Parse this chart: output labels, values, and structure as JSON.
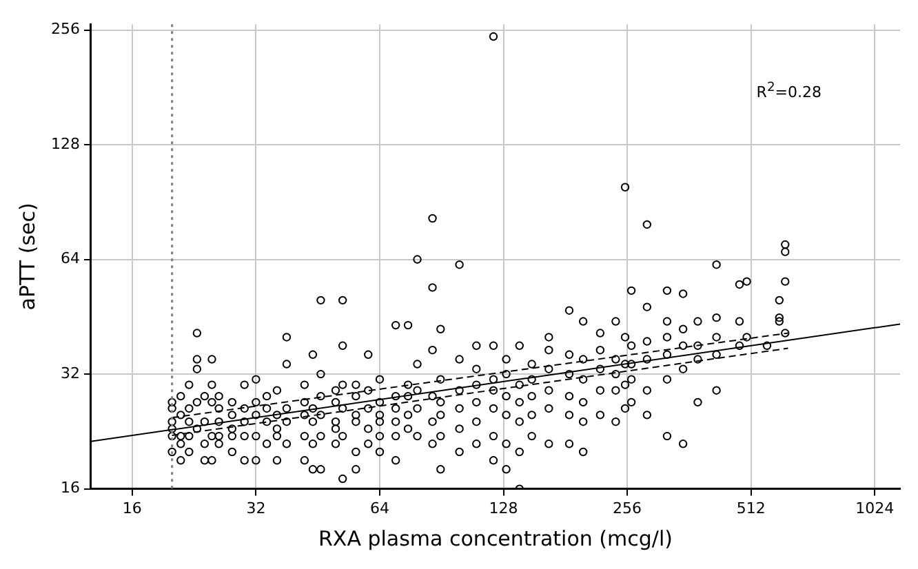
{
  "chart_data": {
    "type": "scatter",
    "xlabel": "RXA plasma concentration (mcg/l)",
    "ylabel": "aPTT (sec)",
    "log": "xy",
    "grid": true,
    "legend": false,
    "xlim": [
      12.7,
      1180
    ],
    "xticks": [
      16,
      32,
      64,
      128,
      256,
      512,
      1024
    ],
    "ylim": [
      16,
      265
    ],
    "yticks": [
      16,
      32,
      64,
      128,
      256
    ],
    "annotations": [
      "R$^{2}$=0.28"
    ],
    "ref_lines": [
      {
        "axis": "x",
        "value": 20,
        "color": "#808080",
        "line_style": "dotted"
      }
    ],
    "series": [
      {
        "marker": "circle",
        "color": "#000000",
        "x": [
          20,
          20,
          20,
          20,
          20,
          20,
          21,
          21,
          21,
          21,
          21,
          22,
          22,
          22,
          22,
          22,
          23,
          23,
          23,
          23,
          23,
          24,
          24,
          24,
          24,
          25,
          25,
          25,
          25,
          25,
          26,
          26,
          26,
          26,
          26,
          28,
          28,
          28,
          28,
          28,
          30,
          30,
          30,
          30,
          30,
          32,
          32,
          32,
          32,
          32,
          34,
          34,
          34,
          34,
          36,
          36,
          36,
          36,
          36,
          38,
          38,
          38,
          38,
          38,
          42,
          42,
          42,
          42,
          42,
          44,
          44,
          44,
          44,
          44,
          46,
          46,
          46,
          46,
          46,
          46,
          50,
          50,
          50,
          50,
          50,
          52,
          52,
          52,
          52,
          52,
          52,
          56,
          56,
          56,
          56,
          56,
          56,
          60,
          60,
          60,
          60,
          60,
          64,
          64,
          64,
          64,
          64,
          64,
          70,
          70,
          70,
          70,
          70,
          70,
          75,
          75,
          75,
          75,
          75,
          79,
          79,
          79,
          79,
          79,
          86,
          86,
          86,
          86,
          86,
          86,
          90,
          90,
          90,
          90,
          90,
          90,
          100,
          100,
          100,
          100,
          100,
          100,
          110,
          110,
          110,
          110,
          110,
          110,
          121,
          121,
          121,
          121,
          121,
          121,
          121,
          130,
          130,
          130,
          130,
          130,
          130,
          140,
          140,
          140,
          140,
          140,
          140,
          150,
          150,
          150,
          150,
          150,
          165,
          165,
          165,
          165,
          165,
          165,
          185,
          185,
          185,
          185,
          185,
          185,
          200,
          200,
          200,
          200,
          200,
          200,
          220,
          220,
          220,
          220,
          220,
          240,
          240,
          240,
          240,
          240,
          253,
          253,
          253,
          253,
          253,
          262,
          262,
          262,
          262,
          262,
          286,
          286,
          286,
          286,
          286,
          286,
          320,
          320,
          320,
          320,
          320,
          320,
          350,
          350,
          350,
          350,
          350,
          380,
          380,
          380,
          380,
          422,
          422,
          422,
          422,
          422,
          480,
          480,
          480,
          500,
          500,
          560,
          600,
          600,
          600,
          620,
          620,
          620,
          620
        ],
        "values": [
          22,
          24,
          26,
          27,
          20,
          23,
          25,
          19,
          22,
          28,
          21,
          24,
          26,
          30,
          20,
          22,
          41,
          33,
          35,
          27,
          23,
          19,
          24,
          28,
          21,
          27,
          22,
          35,
          19,
          30,
          24,
          26,
          21,
          28,
          22,
          23,
          25,
          20,
          27,
          22,
          30,
          22,
          19,
          26,
          24,
          31,
          25,
          22,
          27,
          19,
          24,
          28,
          21,
          26,
          25,
          19,
          29,
          23,
          22,
          40,
          26,
          24,
          21,
          34,
          27,
          22,
          25,
          30,
          19,
          36,
          24,
          26,
          21,
          18,
          50,
          28,
          25,
          22,
          18,
          32,
          24,
          27,
          23,
          29,
          21,
          50,
          38,
          26,
          22,
          17,
          30,
          30,
          24,
          28,
          20,
          18,
          25,
          36,
          26,
          23,
          29,
          21,
          27,
          24,
          22,
          31,
          25,
          20,
          43,
          28,
          26,
          24,
          22,
          19,
          43,
          30,
          25,
          23,
          28,
          64,
          29,
          26,
          22,
          34,
          82,
          54,
          37,
          24,
          21,
          28,
          42,
          31,
          27,
          22,
          18,
          25,
          62,
          35,
          29,
          26,
          23,
          20,
          38,
          30,
          27,
          24,
          21,
          33,
          246,
          38,
          29,
          26,
          22,
          19,
          31,
          35,
          32,
          28,
          25,
          21,
          18,
          38,
          30,
          27,
          24,
          20,
          16,
          34,
          31,
          28,
          25,
          22,
          37,
          33,
          29,
          26,
          21,
          40,
          47,
          36,
          32,
          28,
          25,
          21,
          44,
          35,
          31,
          27,
          24,
          20,
          41,
          37,
          33,
          29,
          25,
          44,
          35,
          32,
          29,
          24,
          99,
          40,
          34,
          30,
          26,
          53,
          38,
          34,
          31,
          27,
          79,
          48,
          39,
          35,
          29,
          25,
          44,
          40,
          36,
          31,
          22,
          53,
          52,
          42,
          38,
          33,
          21,
          44,
          38,
          35,
          27,
          62,
          45,
          40,
          36,
          29,
          55,
          44,
          38,
          56,
          40,
          38,
          50,
          45,
          44,
          70,
          67,
          56,
          41
        ]
      },
      {
        "type": "line",
        "marker": "none",
        "color": "#000000",
        "line_style": "solid",
        "x": [
          12.7,
          1180
        ],
        "values": [
          21.3,
          43.3
        ]
      },
      {
        "type": "line",
        "marker": "none",
        "color": "#000000",
        "line_style": "dashed",
        "x": [
          20,
          630
        ],
        "values": [
          24.6,
          41
        ]
      },
      {
        "type": "line",
        "marker": "none",
        "color": "#000000",
        "line_style": "dashed",
        "x": [
          20,
          630
        ],
        "values": [
          22.1,
          37.4
        ]
      }
    ]
  }
}
